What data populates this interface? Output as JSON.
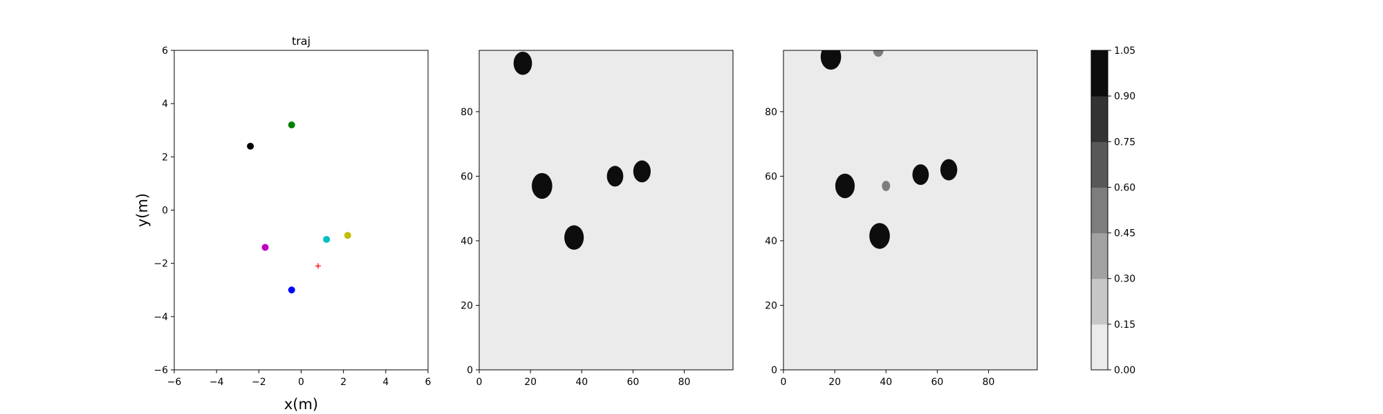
{
  "chart_data": [
    {
      "type": "scatter",
      "title": "traj",
      "xlabel": "x(m)",
      "ylabel": "y(m)",
      "xlim": [
        -6,
        6
      ],
      "ylim": [
        -6,
        6
      ],
      "xticks": [
        -6,
        -4,
        -2,
        0,
        2,
        4,
        6
      ],
      "yticks": [
        -6,
        -4,
        -2,
        0,
        2,
        4,
        6
      ],
      "xtick_labels": [
        "−6",
        "−4",
        "−2",
        "0",
        "2",
        "4",
        "6"
      ],
      "ytick_labels": [
        "−6",
        "−4",
        "−2",
        "0",
        "2",
        "4",
        "6"
      ],
      "grid": false,
      "points": [
        {
          "x": -2.4,
          "y": 2.4,
          "color": "#000000",
          "marker": "circle"
        },
        {
          "x": -0.45,
          "y": 3.2,
          "color": "#008000",
          "marker": "circle"
        },
        {
          "x": -1.7,
          "y": -1.4,
          "color": "#bf00bf",
          "marker": "circle"
        },
        {
          "x": 1.2,
          "y": -1.1,
          "color": "#00bfbf",
          "marker": "circle"
        },
        {
          "x": 2.2,
          "y": -0.95,
          "color": "#bfbf00",
          "marker": "circle"
        },
        {
          "x": -0.45,
          "y": -3.0,
          "color": "#0000ff",
          "marker": "circle"
        },
        {
          "x": 0.8,
          "y": -2.1,
          "color": "#ff0000",
          "marker": "plus"
        }
      ]
    },
    {
      "type": "heatmap",
      "title": "",
      "xlabel": "",
      "ylabel": "",
      "xlim": [
        0,
        99
      ],
      "ylim": [
        0,
        99
      ],
      "xticks": [
        0,
        20,
        40,
        60,
        80
      ],
      "yticks": [
        0,
        20,
        40,
        60,
        80
      ],
      "background_value": 0.07,
      "blobs": [
        {
          "x": 17,
          "y": 95,
          "r": 3.6,
          "value": 1.0
        },
        {
          "x": 24.5,
          "y": 57,
          "r": 4.0,
          "value": 1.0
        },
        {
          "x": 37,
          "y": 41,
          "r": 3.8,
          "value": 1.0
        },
        {
          "x": 53,
          "y": 60,
          "r": 3.2,
          "value": 1.0
        },
        {
          "x": 63.5,
          "y": 61.5,
          "r": 3.4,
          "value": 1.0
        }
      ]
    },
    {
      "type": "heatmap",
      "title": "",
      "xlabel": "",
      "ylabel": "",
      "xlim": [
        0,
        99
      ],
      "ylim": [
        0,
        99
      ],
      "xticks": [
        0,
        20,
        40,
        60,
        80
      ],
      "yticks": [
        0,
        20,
        40,
        60,
        80
      ],
      "background_value": 0.07,
      "blobs": [
        {
          "x": 18.5,
          "y": 97,
          "r": 4.0,
          "value": 1.0
        },
        {
          "x": 37,
          "y": 99,
          "r": 2.0,
          "value": 0.55
        },
        {
          "x": 24,
          "y": 57,
          "r": 3.8,
          "value": 1.0
        },
        {
          "x": 37.5,
          "y": 41.5,
          "r": 4.0,
          "value": 1.0
        },
        {
          "x": 40,
          "y": 57,
          "r": 1.6,
          "value": 0.45
        },
        {
          "x": 53.5,
          "y": 60.5,
          "r": 3.2,
          "value": 1.0
        },
        {
          "x": 64.5,
          "y": 62,
          "r": 3.3,
          "value": 1.0
        }
      ]
    }
  ],
  "colorbar": {
    "ticks": [
      "0.00",
      "0.15",
      "0.30",
      "0.45",
      "0.60",
      "0.75",
      "0.90",
      "1.05"
    ],
    "levels": [
      {
        "min": 0.0,
        "max": 0.15,
        "color": "#ebebeb"
      },
      {
        "min": 0.15,
        "max": 0.3,
        "color": "#c7c7c7"
      },
      {
        "min": 0.3,
        "max": 0.45,
        "color": "#a2a2a2"
      },
      {
        "min": 0.45,
        "max": 0.6,
        "color": "#7d7d7d"
      },
      {
        "min": 0.6,
        "max": 0.75,
        "color": "#585858"
      },
      {
        "min": 0.75,
        "max": 0.9,
        "color": "#333333"
      },
      {
        "min": 0.9,
        "max": 1.05,
        "color": "#0d0d0d"
      }
    ]
  }
}
